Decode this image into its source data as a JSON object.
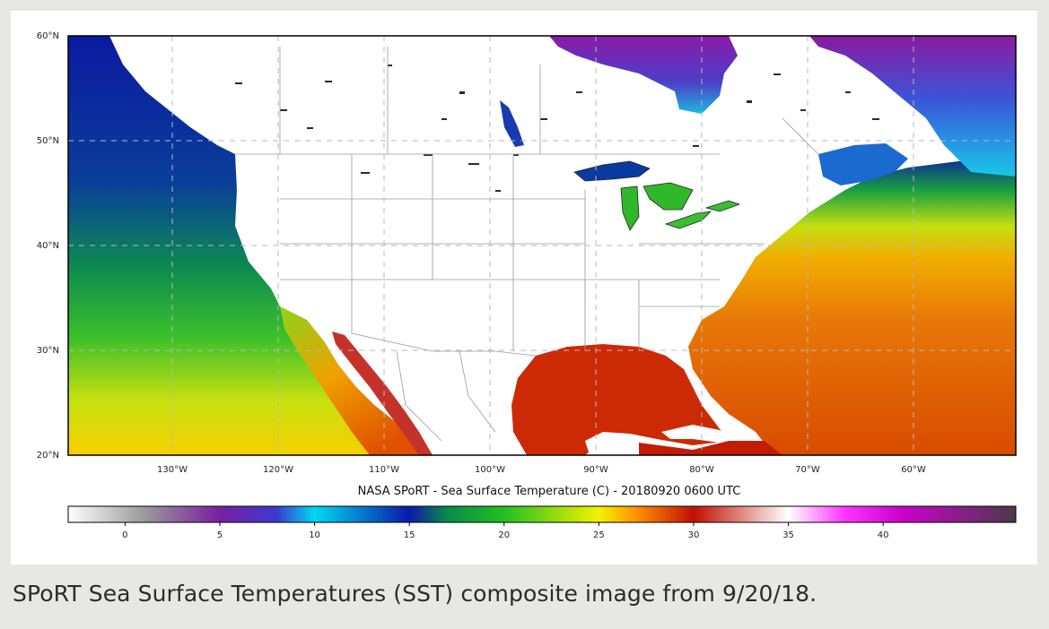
{
  "map": {
    "title": "NASA SPoRT - Sea Surface Temperature (C) - 20180920 0600 UTC",
    "lat_labels": [
      "60°N",
      "50°N",
      "40°N",
      "30°N",
      "20°N"
    ],
    "lon_labels": [
      "130°W",
      "120°W",
      "110°W",
      "100°W",
      "90°W",
      "80°W",
      "70°W",
      "60°W"
    ],
    "extent": {
      "lon_min": -140,
      "lon_max": -52,
      "lat_min": 20,
      "lat_max": 60
    },
    "land_color": "#ffffff",
    "boundary_color": "#9a9a9a",
    "graticule_style": "dashed"
  },
  "colorbar": {
    "ticks": [
      "0",
      "5",
      "10",
      "15",
      "20",
      "25",
      "30",
      "35",
      "40"
    ],
    "range": [
      -3,
      47
    ],
    "stops": [
      {
        "value": -3,
        "color": "#ffffff"
      },
      {
        "value": 1,
        "color": "#9a9a9a"
      },
      {
        "value": 5,
        "color": "#7a1fa0"
      },
      {
        "value": 8,
        "color": "#3a3ad0"
      },
      {
        "value": 10,
        "color": "#00d8f2"
      },
      {
        "value": 15,
        "color": "#0a1aa8"
      },
      {
        "value": 17,
        "color": "#0a8a4a"
      },
      {
        "value": 20,
        "color": "#22c022"
      },
      {
        "value": 25,
        "color": "#f2f200"
      },
      {
        "value": 27,
        "color": "#ff9000"
      },
      {
        "value": 30,
        "color": "#c01000"
      },
      {
        "value": 35,
        "color": "#ffffff"
      },
      {
        "value": 38,
        "color": "#ff33ff"
      },
      {
        "value": 41,
        "color": "#cc00cc"
      },
      {
        "value": 47,
        "color": "#4a3a4a"
      }
    ]
  },
  "caption": "SPoRT Sea Surface Temperatures (SST) composite image from 9/20/18."
}
